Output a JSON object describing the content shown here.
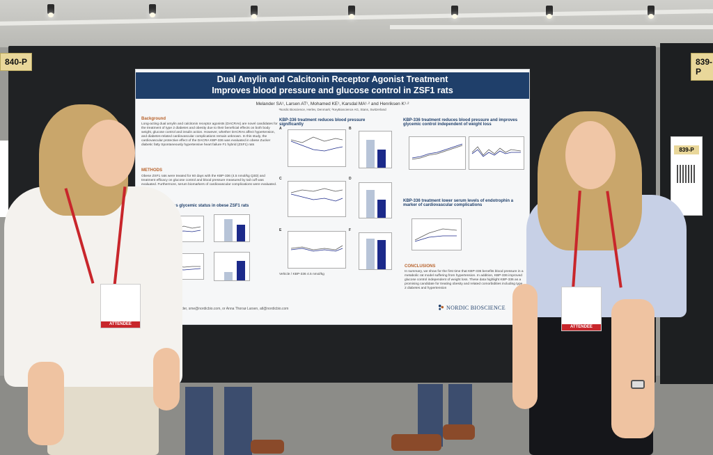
{
  "booths": {
    "left": "840-P",
    "right": "839-P",
    "side_card": "839-P"
  },
  "poster": {
    "title_line1": "Dual Amylin and Calcitonin Receptor Agonist Treatment",
    "title_line2": "Improves blood pressure and glucose control in ZSF1 rats",
    "authors": "Melander SA¹, Larsen AT¹, Mohamed KE¹, Karsdal MA¹·² and Henriksen K¹·²",
    "affiliations": "¹Nordic Bioscience, Herlev, Denmark; ²KeyBioscience AG, Stans, Switzerland",
    "sections": {
      "background": "Background",
      "methods": "METHODS",
      "glycemic": "improves glycemic status in obese ZSF1 rats",
      "bp": "KBP-336 treatment reduces blood pressure significantly",
      "bp_right": "KBP-336 treatment reduces blood pressure and improves glycemic control independent of weight loss",
      "endotrophin": "KBP-336 treatment lower serum levels of endotrophin a marker of cardiovascular complications",
      "conclusions": "CONCLUSIONS"
    },
    "background_text": "Long-acting dual amylin and calcitonin receptor agonists (DACRAs) are novel candidates for the treatment of type 2 diabetes and obesity due to their beneficial effects on both body weight, glucose control and insulin action. However, whether DACRAs affect hypertension, and diabetes-related cardiovascular complications remain unknown. In this study, the cardiovascular protective effect of the DACRA KBP-336 was evaluated in obese Zucker diabetic fatty Spontaneously hypertensive heart failure F1 hybrid (ZSF1) rats",
    "methods_text": "Obese ZSF1 rats were treated for 60 days with the KBP-336 (4.5 nmol/kg Q3D) and treatment efficacy on glucose control and blood pressure measured by tail cuff was evaluated. Furthermore, serum biomarkers of cardiovascular complications were evaluated.",
    "conclusions_text": "In summary, we show for the first time that KBP-336 benefits blood pressure in a metabolic rat model suffering from hypertension. In addition, KBP-336 improved glucose control independent of weight loss. These data highlight KBP-336 as a promising candidate for treating obesity and related comorbidities including type 2 diabetes and hypertension",
    "contact": "der, sme@nordicbio.com, or Anna Thorsø Larsen, atl@nordicbio.com",
    "logo": "NORDIC BIOSCIENCE",
    "legend_vehicle": "Vehicle",
    "legend_kbp": "KBP-336 4.5 nmol/kg",
    "xaxis_days": "Time (days)",
    "panel_letters": [
      "A",
      "B",
      "C",
      "D",
      "E",
      "F"
    ]
  },
  "badges": {
    "left": "ATTENDEE",
    "right": "ATTENDEE"
  },
  "colors": {
    "header": "#1f3f6a",
    "accent": "#b8622b",
    "kbp_bar": "#1c2a8a",
    "vehicle_bar": "#b7c4d8",
    "lanyard": "#c8262b"
  }
}
